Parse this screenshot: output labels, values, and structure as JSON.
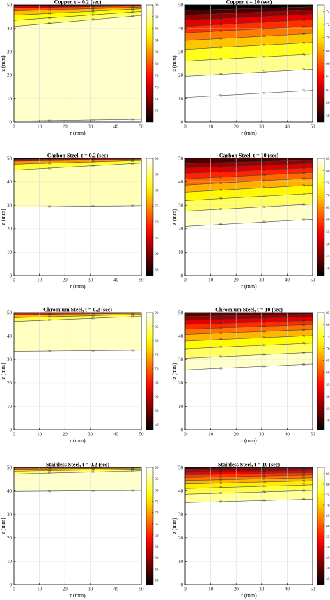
{
  "figure": {
    "r_label": "r (mm)",
    "z_label": "z (mm)"
  },
  "chart_data": [
    {
      "type": "contour",
      "title": "Copper, t = 0.2 (sec)",
      "xlabel": "r (mm)",
      "ylabel": "z (mm)",
      "xlim": [
        0,
        50
      ],
      "ylim": [
        0,
        50
      ],
      "xticks": [
        "0",
        "10",
        "20",
        "30",
        "40",
        "50"
      ],
      "yticks": [
        "0",
        "10",
        "20",
        "30",
        "40",
        "50"
      ],
      "grid": true,
      "colorbar": {
        "range": [
          70,
          90
        ],
        "ticks": [
          "72",
          "74",
          "76",
          "78",
          "80",
          "82",
          "84",
          "86",
          "88",
          "90"
        ]
      },
      "contours": [
        {
          "level": 90,
          "z_at_r0": 0.4,
          "z_at_r50": 1.2,
          "label": "90"
        },
        {
          "level": 88,
          "z_at_r0": 40.8,
          "z_at_r50": 45.5,
          "label": "88"
        },
        {
          "level": 86,
          "z_at_r0": 43.4,
          "z_at_r50": 47.2,
          "label": "86"
        },
        {
          "level": 84,
          "z_at_r0": 45.6,
          "z_at_r50": 48.3,
          "label": "84"
        },
        {
          "level": 82,
          "z_at_r0": 47.4,
          "z_at_r50": 49.0,
          "label": "82"
        },
        {
          "level": 78,
          "z_at_r0": 48.6,
          "z_at_r50": 49.6,
          "label": "78"
        },
        {
          "level": 74,
          "z_at_r0": 49.4,
          "z_at_r50": 49.9,
          "label": "74"
        }
      ]
    },
    {
      "type": "contour",
      "title": "Copper, t = 10 (sec)",
      "xlabel": "r (mm)",
      "ylabel": "z (mm)",
      "xlim": [
        0,
        50
      ],
      "ylim": [
        0,
        50
      ],
      "xticks": [
        "0",
        "10",
        "20",
        "30",
        "40",
        "50"
      ],
      "yticks": [
        "0",
        "10",
        "20",
        "30",
        "40",
        "50"
      ],
      "grid": true,
      "colorbar": {
        "range": [
          57,
          75
        ],
        "ticks": [
          "58",
          "60",
          "62",
          "64",
          "66",
          "68",
          "70",
          "72",
          "74"
        ]
      },
      "contours": [
        {
          "level": 76,
          "z_at_r0": 10.5,
          "z_at_r50": 13.5,
          "label": "76"
        },
        {
          "level": 74,
          "z_at_r0": 19.5,
          "z_at_r50": 22.5,
          "label": "74"
        },
        {
          "level": 72,
          "z_at_r0": 26.0,
          "z_at_r50": 29.0,
          "label": "72"
        },
        {
          "level": 70,
          "z_at_r0": 31.0,
          "z_at_r50": 34.0,
          "label": "70"
        },
        {
          "level": 68,
          "z_at_r0": 34.8,
          "z_at_r50": 37.8,
          "label": "68"
        },
        {
          "level": 66,
          "z_at_r0": 38.0,
          "z_at_r50": 41.0,
          "label": "66"
        },
        {
          "level": 64,
          "z_at_r0": 40.8,
          "z_at_r50": 43.8,
          "label": "64"
        },
        {
          "level": 62,
          "z_at_r0": 43.4,
          "z_at_r50": 46.0,
          "label": "62"
        },
        {
          "level": 60,
          "z_at_r0": 45.6,
          "z_at_r50": 47.8,
          "label": "60"
        },
        {
          "level": 58,
          "z_at_r0": 47.6,
          "z_at_r50": 49.2,
          "label": "58"
        }
      ]
    },
    {
      "type": "contour",
      "title": "Carbon Steel, t = 0.2 (sec)",
      "xlabel": "r (mm)",
      "ylabel": "z (mm)",
      "xlim": [
        0,
        50
      ],
      "ylim": [
        0,
        50
      ],
      "xticks": [
        "0",
        "10",
        "20",
        "30",
        "40",
        "50"
      ],
      "yticks": [
        "0",
        "10",
        "20",
        "30",
        "40",
        "50"
      ],
      "grid": true,
      "colorbar": {
        "range": [
          53,
          90
        ],
        "ticks": [
          "55",
          "60",
          "65",
          "70",
          "75",
          "80",
          "85",
          "90"
        ]
      },
      "contours": [
        {
          "level": 90,
          "z_at_r0": 29.3,
          "z_at_r50": 29.8,
          "label": "90"
        },
        {
          "level": 85,
          "z_at_r0": 45.0,
          "z_at_r50": 48.0,
          "label": "85"
        },
        {
          "level": 80,
          "z_at_r0": 47.5,
          "z_at_r50": 49.1,
          "label": "80"
        },
        {
          "level": 70,
          "z_at_r0": 48.8,
          "z_at_r50": 49.6,
          "label": "70"
        },
        {
          "level": 60,
          "z_at_r0": 49.5,
          "z_at_r50": 49.9,
          "label": "60"
        }
      ]
    },
    {
      "type": "contour",
      "title": "Carbon Steel, t = 10 (sec)",
      "xlabel": "r (mm)",
      "ylabel": "z (mm)",
      "xlim": [
        0,
        50
      ],
      "ylim": [
        0,
        50
      ],
      "xticks": [
        "0",
        "10",
        "20",
        "30",
        "40",
        "50"
      ],
      "yticks": [
        "0",
        "10",
        "20",
        "30",
        "40",
        "50"
      ],
      "grid": true,
      "colorbar": {
        "range": [
          37,
          85
        ],
        "ticks": [
          "40",
          "45",
          "50",
          "55",
          "60",
          "65",
          "70",
          "75",
          "80",
          "85"
        ]
      },
      "contours": [
        {
          "level": 85,
          "z_at_r0": 21.0,
          "z_at_r50": 24.0,
          "label": "85"
        },
        {
          "level": 80,
          "z_at_r0": 27.5,
          "z_at_r50": 30.5,
          "label": "80"
        },
        {
          "level": 75,
          "z_at_r0": 32.0,
          "z_at_r50": 35.0,
          "label": "75"
        },
        {
          "level": 70,
          "z_at_r0": 35.6,
          "z_at_r50": 38.6,
          "label": "70"
        },
        {
          "level": 65,
          "z_at_r0": 38.6,
          "z_at_r50": 41.6,
          "label": "65"
        },
        {
          "level": 60,
          "z_at_r0": 41.2,
          "z_at_r50": 44.0,
          "label": "60"
        },
        {
          "level": 55,
          "z_at_r0": 43.6,
          "z_at_r50": 46.0,
          "label": "55"
        },
        {
          "level": 50,
          "z_at_r0": 45.8,
          "z_at_r50": 47.8,
          "label": "50"
        },
        {
          "level": 45,
          "z_at_r0": 47.8,
          "z_at_r50": 49.2,
          "label": "45"
        }
      ]
    },
    {
      "type": "contour",
      "title": "Chromium Steel, t = 0.2 (sec)",
      "xlabel": "r (mm)",
      "ylabel": "z (mm)",
      "xlim": [
        0,
        50
      ],
      "ylim": [
        0,
        50
      ],
      "xticks": [
        "0",
        "10",
        "20",
        "30",
        "40",
        "50"
      ],
      "yticks": [
        "0",
        "10",
        "20",
        "30",
        "40",
        "50"
      ],
      "grid": true,
      "colorbar": {
        "range": [
          48,
          90
        ],
        "ticks": [
          "50",
          "55",
          "60",
          "65",
          "70",
          "75",
          "80",
          "85",
          "90"
        ]
      },
      "contours": [
        {
          "level": 90,
          "z_at_r0": 33.5,
          "z_at_r50": 34.0,
          "label": "90"
        },
        {
          "level": 85,
          "z_at_r0": 46.2,
          "z_at_r50": 48.4,
          "label": "85"
        },
        {
          "level": 80,
          "z_at_r0": 47.8,
          "z_at_r50": 49.2,
          "label": "80"
        },
        {
          "level": 70,
          "z_at_r0": 49.0,
          "z_at_r50": 49.7,
          "label": "70"
        },
        {
          "level": 60,
          "z_at_r0": 49.6,
          "z_at_r50": 49.9,
          "label": "60"
        }
      ]
    },
    {
      "type": "contour",
      "title": "Chromium Steel, t = 10 (sec)",
      "xlabel": "r (mm)",
      "ylabel": "z (mm)",
      "xlim": [
        0,
        50
      ],
      "ylim": [
        0,
        50
      ],
      "xticks": [
        "0",
        "10",
        "20",
        "30",
        "40",
        "50"
      ],
      "yticks": [
        "0",
        "10",
        "20",
        "30",
        "40",
        "50"
      ],
      "grid": true,
      "colorbar": {
        "range": [
          36,
          85
        ],
        "ticks": [
          "40",
          "45",
          "50",
          "55",
          "60",
          "65",
          "70",
          "75",
          "80",
          "85"
        ]
      },
      "contours": [
        {
          "level": 85,
          "z_at_r0": 25.5,
          "z_at_r50": 28.0,
          "label": "85"
        },
        {
          "level": 80,
          "z_at_r0": 30.5,
          "z_at_r50": 33.0,
          "label": "80"
        },
        {
          "level": 75,
          "z_at_r0": 34.5,
          "z_at_r50": 37.0,
          "label": "75"
        },
        {
          "level": 70,
          "z_at_r0": 37.8,
          "z_at_r50": 40.2,
          "label": "70"
        },
        {
          "level": 65,
          "z_at_r0": 40.6,
          "z_at_r50": 42.8,
          "label": "65"
        },
        {
          "level": 60,
          "z_at_r0": 42.9,
          "z_at_r50": 44.9,
          "label": "60"
        },
        {
          "level": 55,
          "z_at_r0": 44.9,
          "z_at_r50": 46.6,
          "label": "55"
        },
        {
          "level": 50,
          "z_at_r0": 46.7,
          "z_at_r50": 48.1,
          "label": "50"
        },
        {
          "level": 45,
          "z_at_r0": 48.3,
          "z_at_r50": 49.3,
          "label": "45"
        }
      ]
    },
    {
      "type": "contour",
      "title": "Stainless Steel, t = 0.2 (sec)",
      "xlabel": "r (mm)",
      "ylabel": "z (mm)",
      "xlim": [
        0,
        50
      ],
      "ylim": [
        0,
        50
      ],
      "xticks": [
        "0",
        "10",
        "20",
        "30",
        "40",
        "50"
      ],
      "yticks": [
        "0",
        "10",
        "20",
        "30",
        "40",
        "50"
      ],
      "grid": true,
      "colorbar": {
        "range": [
          38,
          90
        ],
        "ticks": [
          "40",
          "45",
          "50",
          "55",
          "60",
          "65",
          "70",
          "75",
          "80",
          "85",
          "90"
        ]
      },
      "contours": [
        {
          "level": 90,
          "z_at_r0": 39.8,
          "z_at_r50": 40.2,
          "label": "90"
        },
        {
          "level": 85,
          "z_at_r0": 47.2,
          "z_at_r50": 48.6,
          "label": "85"
        },
        {
          "level": 80,
          "z_at_r0": 48.4,
          "z_at_r50": 49.3,
          "label": "80"
        },
        {
          "level": 70,
          "z_at_r0": 49.2,
          "z_at_r50": 49.7,
          "label": "70"
        },
        {
          "level": 60,
          "z_at_r0": 49.7,
          "z_at_r50": 49.9,
          "label": "60"
        }
      ]
    },
    {
      "type": "contour",
      "title": "Stainless Steel, t = 10 (sec)",
      "xlabel": "r (mm)",
      "ylabel": "z (mm)",
      "xlim": [
        0,
        50
      ],
      "ylim": [
        0,
        50
      ],
      "xticks": [
        "0",
        "10",
        "20",
        "30",
        "40",
        "50"
      ],
      "yticks": [
        "0",
        "10",
        "20",
        "30",
        "40",
        "50"
      ],
      "grid": true,
      "colorbar": {
        "range": [
          32,
          88
        ],
        "ticks": [
          "35",
          "40",
          "45",
          "50",
          "55",
          "60",
          "65",
          "70",
          "75",
          "80",
          "85"
        ]
      },
      "contours": [
        {
          "level": 85,
          "z_at_r0": 35.0,
          "z_at_r50": 36.5,
          "label": "85"
        },
        {
          "level": 80,
          "z_at_r0": 38.6,
          "z_at_r50": 40.2,
          "label": "80"
        },
        {
          "level": 75,
          "z_at_r0": 41.0,
          "z_at_r50": 42.6,
          "label": "75"
        },
        {
          "level": 70,
          "z_at_r0": 42.9,
          "z_at_r50": 44.3,
          "label": "70"
        },
        {
          "level": 65,
          "z_at_r0": 44.4,
          "z_at_r50": 45.6,
          "label": "65"
        },
        {
          "level": 60,
          "z_at_r0": 45.7,
          "z_at_r50": 46.8,
          "label": "60"
        },
        {
          "level": 55,
          "z_at_r0": 46.8,
          "z_at_r50": 47.8,
          "label": "55"
        },
        {
          "level": 50,
          "z_at_r0": 47.8,
          "z_at_r50": 48.6,
          "label": "50"
        },
        {
          "level": 45,
          "z_at_r0": 48.6,
          "z_at_r50": 49.3,
          "label": "45"
        },
        {
          "level": 40,
          "z_at_r0": 49.3,
          "z_at_r50": 49.8,
          "label": "40"
        }
      ]
    }
  ]
}
